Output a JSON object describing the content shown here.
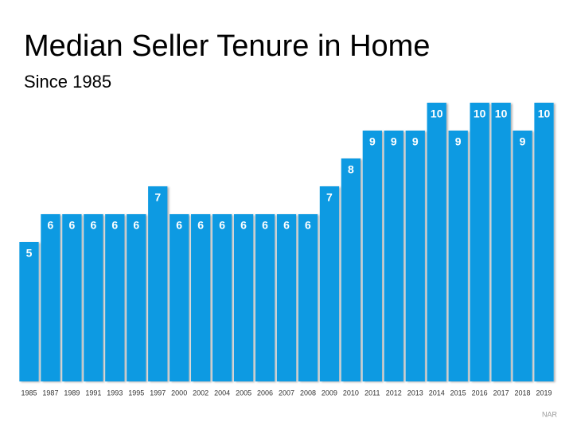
{
  "chart_data": {
    "type": "bar",
    "title": "Median Seller Tenure in Home",
    "subtitle": "Since 1985",
    "source": "NAR",
    "categories": [
      "1985",
      "1987",
      "1989",
      "1991",
      "1993",
      "1995",
      "1997",
      "2000",
      "2002",
      "2004",
      "2005",
      "2006",
      "2007",
      "2008",
      "2009",
      "2010",
      "2011",
      "2012",
      "2013",
      "2014",
      "2015",
      "2016",
      "2017",
      "2018",
      "2019"
    ],
    "values": [
      5,
      6,
      6,
      6,
      6,
      6,
      7,
      6,
      6,
      6,
      6,
      6,
      6,
      6,
      7,
      8,
      9,
      9,
      9,
      10,
      9,
      10,
      10,
      9,
      10
    ],
    "color": "#0a9ae2",
    "ylim": [
      0,
      10
    ],
    "grid": false
  }
}
